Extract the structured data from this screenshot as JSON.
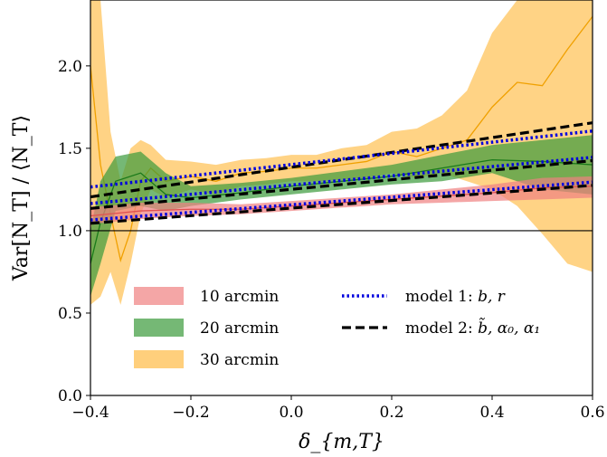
{
  "chart_data": {
    "type": "line",
    "xlabel": "δ_{m,T}",
    "ylabel": "Var[N_T] / ⟨N_T⟩",
    "xlim": [
      -0.4,
      0.6
    ],
    "ylim": [
      0.0,
      2.4
    ],
    "x_ticks": [
      "−0.4",
      "−0.2",
      "0.0",
      "0.2",
      "0.4",
      "0.6"
    ],
    "x_tick_values": [
      -0.4,
      -0.2,
      0.0,
      0.2,
      0.4,
      0.6
    ],
    "y_ticks": [
      "0.0",
      "0.5",
      "1.0",
      "1.5",
      "2.0"
    ],
    "y_tick_values": [
      0.0,
      0.5,
      1.0,
      1.5,
      2.0
    ],
    "grid": false,
    "reference_line": {
      "y": 1.0,
      "color": "#000000"
    },
    "legend_position": "lower-left",
    "colors": {
      "10": "#f08080",
      "20": "#3a9a3a",
      "30": "#ffbb44",
      "model1": "#0000dd",
      "model2": "#000000"
    },
    "bands": [
      {
        "name": "10 arcmin",
        "color_key": "10",
        "x": [
          -0.4,
          -0.3,
          -0.2,
          -0.1,
          0.0,
          0.1,
          0.2,
          0.3,
          0.4,
          0.5,
          0.6
        ],
        "center": [
          1.09,
          1.12,
          1.13,
          1.13,
          1.15,
          1.17,
          1.19,
          1.21,
          1.23,
          1.26,
          1.27
        ],
        "lower": [
          1.04,
          1.07,
          1.09,
          1.1,
          1.12,
          1.14,
          1.16,
          1.17,
          1.18,
          1.19,
          1.2
        ],
        "upper": [
          1.14,
          1.17,
          1.17,
          1.16,
          1.18,
          1.2,
          1.22,
          1.25,
          1.28,
          1.32,
          1.33
        ]
      },
      {
        "name": "20 arcmin",
        "color_key": "20",
        "x": [
          -0.4,
          -0.38,
          -0.35,
          -0.3,
          -0.25,
          -0.2,
          -0.1,
          0.0,
          0.1,
          0.2,
          0.3,
          0.4,
          0.5,
          0.6
        ],
        "center": [
          0.8,
          1.05,
          1.3,
          1.35,
          1.22,
          1.2,
          1.23,
          1.27,
          1.3,
          1.33,
          1.38,
          1.43,
          1.42,
          1.4
        ],
        "lower": [
          0.6,
          0.8,
          1.12,
          1.15,
          1.12,
          1.15,
          1.19,
          1.22,
          1.25,
          1.28,
          1.3,
          1.35,
          1.25,
          1.22
        ],
        "upper": [
          1.0,
          1.3,
          1.45,
          1.48,
          1.35,
          1.27,
          1.29,
          1.32,
          1.36,
          1.4,
          1.46,
          1.52,
          1.55,
          1.58
        ]
      },
      {
        "name": "30 arcmin",
        "color_key": "30",
        "x": [
          -0.4,
          -0.38,
          -0.36,
          -0.34,
          -0.32,
          -0.3,
          -0.28,
          -0.25,
          -0.2,
          -0.15,
          -0.1,
          -0.05,
          0.0,
          0.05,
          0.1,
          0.15,
          0.2,
          0.25,
          0.3,
          0.35,
          0.4,
          0.45,
          0.5,
          0.55,
          0.6
        ],
        "center": [
          2.0,
          1.4,
          1.1,
          0.82,
          1.0,
          1.3,
          1.38,
          1.3,
          1.33,
          1.3,
          1.35,
          1.36,
          1.38,
          1.38,
          1.4,
          1.42,
          1.48,
          1.45,
          1.5,
          1.55,
          1.75,
          1.9,
          1.88,
          2.1,
          2.3
        ],
        "lower": [
          0.55,
          0.6,
          0.75,
          0.55,
          0.8,
          1.1,
          1.25,
          1.2,
          1.25,
          1.22,
          1.27,
          1.28,
          1.3,
          1.3,
          1.31,
          1.32,
          1.35,
          1.32,
          1.35,
          1.3,
          1.25,
          1.15,
          0.98,
          0.8,
          0.75
        ],
        "upper": [
          2.4,
          2.4,
          1.6,
          1.3,
          1.5,
          1.55,
          1.52,
          1.43,
          1.42,
          1.4,
          1.43,
          1.44,
          1.46,
          1.46,
          1.5,
          1.52,
          1.6,
          1.62,
          1.7,
          1.85,
          2.2,
          2.4,
          2.4,
          2.4,
          2.4
        ]
      }
    ],
    "models": [
      {
        "name": "model 1",
        "style": "dotted",
        "color_key": "model1",
        "lines": [
          {
            "x": [
              -0.4,
              0.6
            ],
            "y": [
              1.065,
              1.295
            ]
          },
          {
            "x": [
              -0.4,
              0.6
            ],
            "y": [
              1.165,
              1.445
            ]
          },
          {
            "x": [
              -0.4,
              0.6
            ],
            "y": [
              1.265,
              1.605
            ]
          }
        ]
      },
      {
        "name": "model 2",
        "style": "dashed",
        "color_key": "model2",
        "lines": [
          {
            "x": [
              -0.4,
              0.6
            ],
            "y": [
              1.045,
              1.275
            ]
          },
          {
            "x": [
              -0.4,
              0.6
            ],
            "y": [
              1.135,
              1.425
            ]
          },
          {
            "x": [
              -0.4,
              0.6
            ],
            "y": [
              1.205,
              1.655
            ]
          }
        ]
      }
    ],
    "legend": {
      "left": [
        {
          "label": "10 arcmin",
          "color_key": "10"
        },
        {
          "label": "20 arcmin",
          "color_key": "20"
        },
        {
          "label": "30 arcmin",
          "color_key": "30"
        }
      ],
      "right": [
        {
          "prefix": "model 1: ",
          "math": "b, r",
          "style": "dotted",
          "color_key": "model1"
        },
        {
          "prefix": "model 2: ",
          "math": "b̃, α₀, α₁",
          "style": "dashed",
          "color_key": "model2"
        }
      ]
    }
  }
}
